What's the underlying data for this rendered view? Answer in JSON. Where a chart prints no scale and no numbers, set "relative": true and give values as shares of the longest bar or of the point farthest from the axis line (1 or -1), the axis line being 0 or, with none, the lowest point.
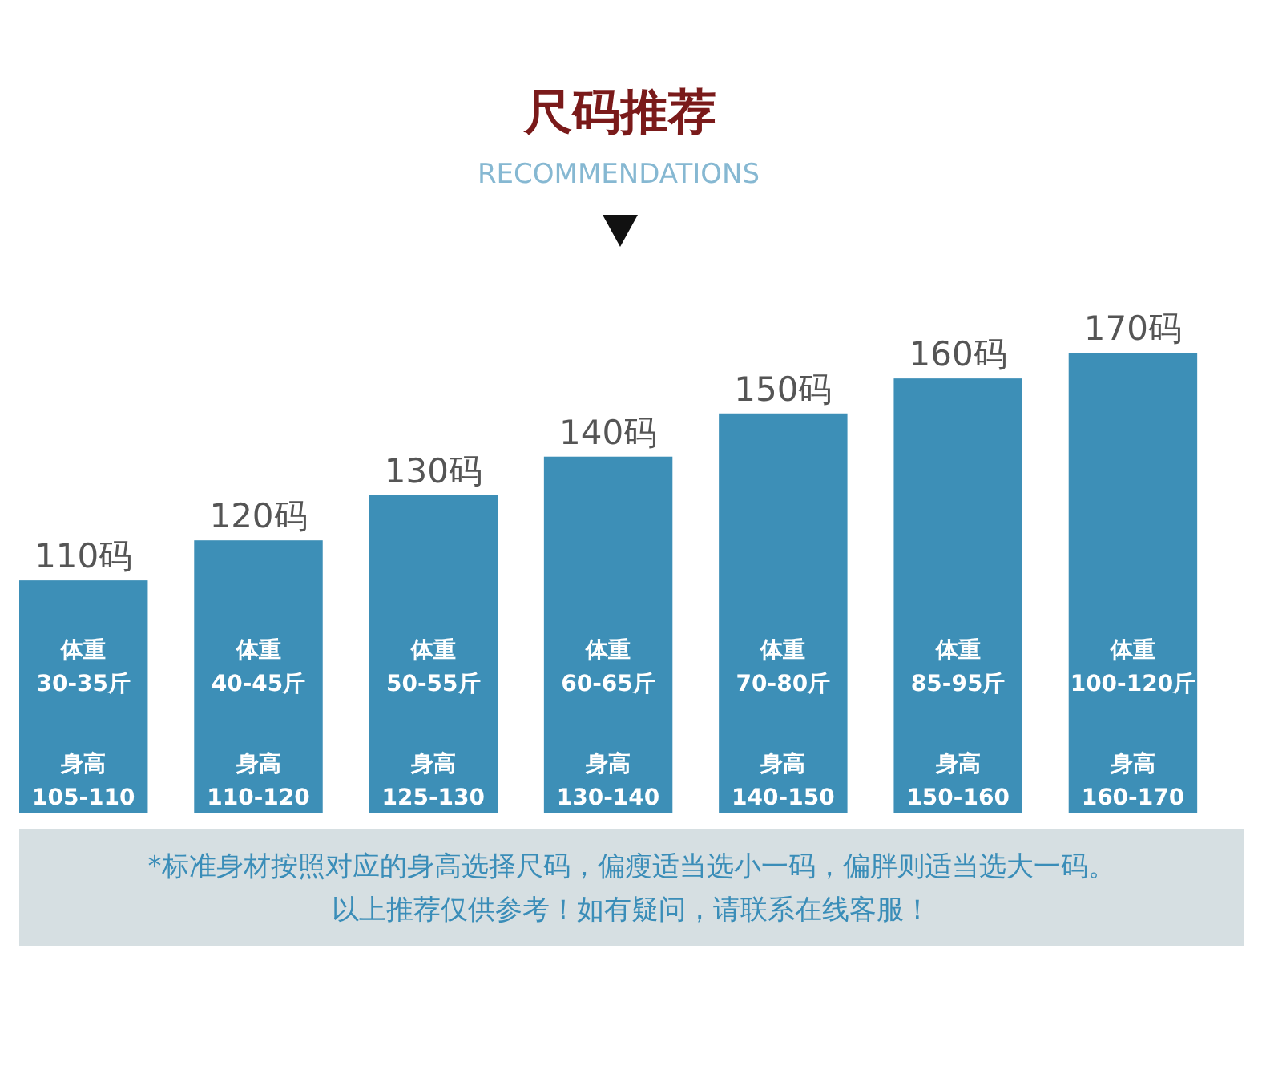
{
  "chart_data": {
    "type": "bar",
    "title": "尺码推荐",
    "subtitle": "RECOMMENDATIONS",
    "relative": true,
    "categories": [
      "110码",
      "120码",
      "130码",
      "140码",
      "150码",
      "160码",
      "170码"
    ],
    "values": [
      0.505,
      0.592,
      0.69,
      0.774,
      0.868,
      0.944,
      1
    ],
    "color": "#3d8fb7",
    "annotations": [
      "体重\n30-35斤",
      "体重\n40-45斤",
      "体重\n50-55斤",
      "体重\n60-65斤",
      "体重\n70-80斤",
      "体重\n85-95斤",
      "体重\n100-120斤",
      "身高\n105-110",
      "身高\n110-120",
      "身高\n125-130",
      "身高\n130-140",
      "身高\n140-150",
      "身高\n150-160",
      "身高\n160-170",
      "*标准身材按照对应的身高选择尺码，偏瘦适当选小一码，偏胖则适当选大一码。",
      "以上推荐仅供参考！如有疑问，请联系在线客服！"
    ]
  }
}
